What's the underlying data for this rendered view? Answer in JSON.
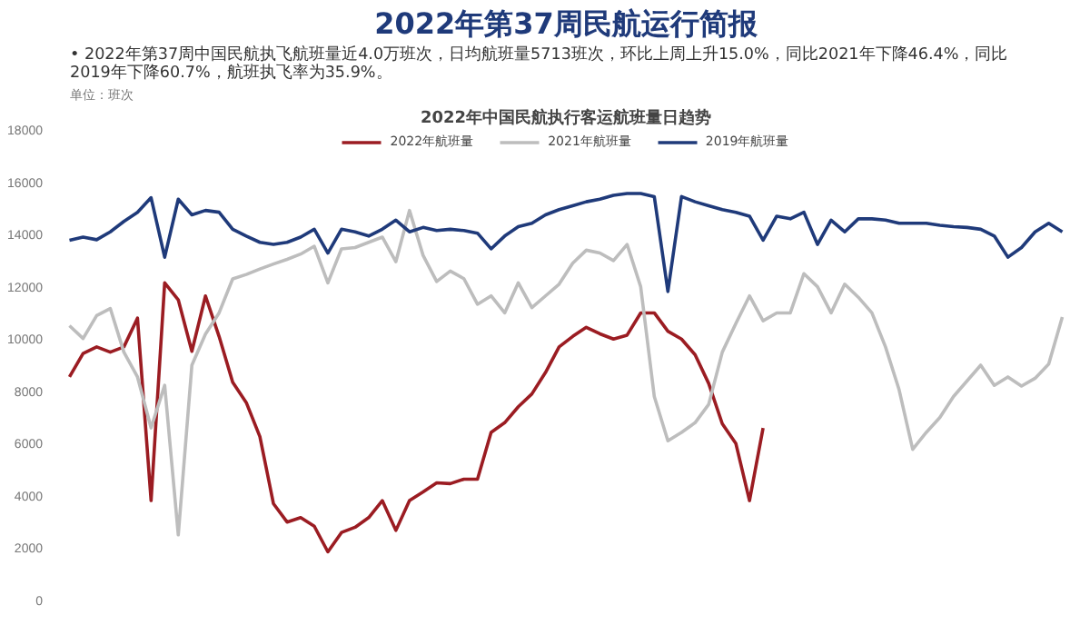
{
  "chart_data": {
    "type": "line",
    "title": "2022年第37周民航运行简报",
    "subtitle": "•  2022年第37周中国民航执飞航班量近4.0万班次，日均航班量5713班次，环比上周上升15.0%，同比2021年下降46.4%，同比2019年下降60.7%，航班执飞率为35.9%。",
    "ylabel": "单位：班次",
    "annotations": [
      "2022年中国民航执行客运航班量日趋势"
    ],
    "categories": [
      null,
      null,
      null,
      null,
      null,
      null,
      null,
      null,
      null,
      null,
      null,
      null,
      null,
      null,
      null,
      null,
      null,
      null,
      null,
      null,
      null,
      null,
      null,
      null,
      null,
      null,
      null,
      null,
      null,
      null,
      null,
      null,
      null,
      null,
      null,
      null,
      null,
      null,
      null,
      null,
      null,
      null,
      null,
      null,
      null,
      null,
      null,
      null,
      null,
      null,
      null,
      null,
      null,
      null,
      null,
      null,
      null,
      null,
      null,
      null,
      null,
      null,
      null,
      null,
      null,
      null,
      null,
      null,
      null,
      null,
      null,
      null,
      null,
      null
    ],
    "ylim": [
      0,
      18000
    ],
    "yticks": [
      0,
      2000,
      4000,
      6000,
      8000,
      10000,
      12000,
      14000,
      16000,
      18000
    ],
    "tick_labels": "y",
    "legend": "top",
    "line_style": "solid",
    "series": [
      {
        "name": "2022年航班量",
        "color": "#9b1c22",
        "values": [
          8550,
          9450,
          9700,
          9500,
          9700,
          10800,
          3820,
          12150,
          11500,
          9530,
          11650,
          10100,
          8350,
          7570,
          6270,
          3700,
          3000,
          3170,
          2840,
          1860,
          2600,
          2800,
          3170,
          3820,
          2680,
          3820,
          4150,
          4500,
          4470,
          4640,
          4640,
          6430,
          6800,
          7410,
          7900,
          8720,
          9700,
          10100,
          10450,
          10200,
          10000,
          10150,
          11000,
          11000,
          10300,
          10000,
          9400,
          8300,
          6760,
          6000,
          3820,
          6600,
          null,
          null,
          null,
          null,
          null,
          null,
          null,
          null,
          null,
          null,
          null,
          null,
          null,
          null,
          null,
          null,
          null,
          null,
          null,
          null,
          null,
          null
        ]
      },
      {
        "name": "2021年航班量",
        "color": "#bdbdbd",
        "values": [
          10510,
          10020,
          10900,
          11170,
          9500,
          8550,
          6600,
          8230,
          2510,
          9000,
          10190,
          11000,
          12300,
          12470,
          12680,
          12870,
          13050,
          13250,
          13550,
          12150,
          13450,
          13500,
          13700,
          13900,
          12960,
          14920,
          13200,
          12200,
          12600,
          12310,
          11330,
          11650,
          11000,
          12150,
          11200,
          11650,
          12100,
          12900,
          13400,
          13290,
          13000,
          13620,
          12000,
          7800,
          6110,
          6430,
          6800,
          7500,
          9500,
          10600,
          11650,
          10700,
          11000,
          11000,
          12500,
          12000,
          11000,
          12100,
          11600,
          11000,
          9700,
          8060,
          5780,
          6430,
          7000,
          7800,
          8400,
          9000,
          8230,
          8550,
          8200,
          8500,
          9040,
          10840
        ]
      },
      {
        "name": "2019年航班量",
        "color": "#1f3a7a",
        "values": [
          13780,
          13900,
          13800,
          14100,
          14500,
          14850,
          15410,
          13130,
          15350,
          14750,
          14920,
          14850,
          14200,
          13940,
          13700,
          13620,
          13700,
          13900,
          14200,
          13290,
          14200,
          14100,
          13940,
          14200,
          14550,
          14100,
          14270,
          14150,
          14200,
          14150,
          14050,
          13450,
          13940,
          14300,
          14430,
          14750,
          14950,
          15100,
          15250,
          15350,
          15500,
          15570,
          15570,
          15450,
          11820,
          15450,
          15250,
          15100,
          14950,
          14850,
          14700,
          13780,
          14700,
          14600,
          14850,
          13620,
          14550,
          14100,
          14600,
          14600,
          14550,
          14430,
          14430,
          14430,
          14350,
          14300,
          14270,
          14200,
          13940,
          13130,
          13500,
          14100,
          14430,
          14100
        ]
      }
    ]
  }
}
